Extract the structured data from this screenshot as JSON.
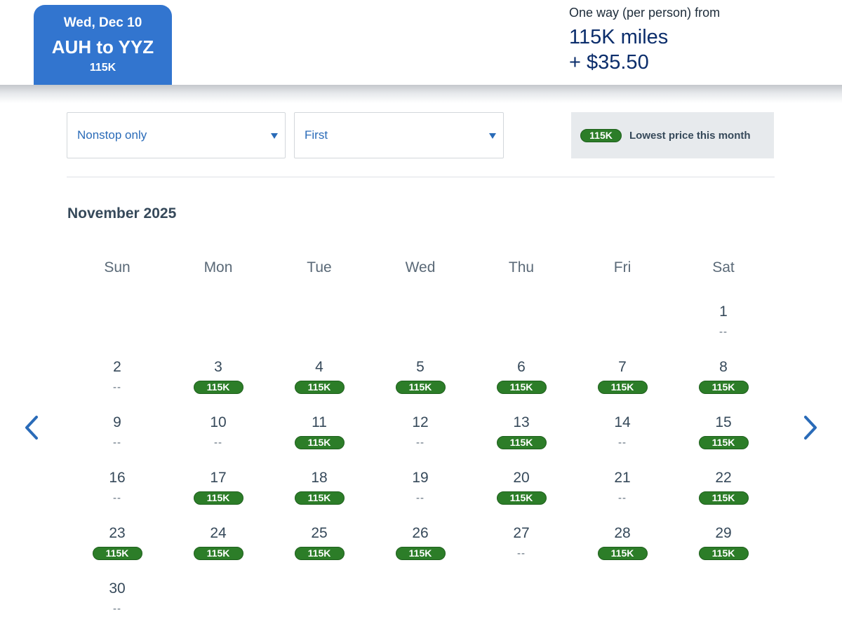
{
  "header": {
    "trip": {
      "date": "Wed, Dec 10",
      "route": "AUH to YYZ",
      "price": "115K"
    },
    "fare": {
      "label": "One way (per person) from",
      "miles": "115K miles",
      "cash": "+ $35.50"
    }
  },
  "filters": {
    "stops": {
      "value": "Nonstop only"
    },
    "cabin": {
      "value": "First"
    }
  },
  "legend": {
    "badge": "115K",
    "text": "Lowest price this month"
  },
  "calendar": {
    "month": "November 2025",
    "weekdays": [
      "Sun",
      "Mon",
      "Tue",
      "Wed",
      "Thu",
      "Fri",
      "Sat"
    ],
    "first_weekday_index": 6,
    "no_fare_text": "--",
    "days": [
      {
        "day": "1",
        "price": null
      },
      {
        "day": "2",
        "price": null
      },
      {
        "day": "3",
        "price": "115K"
      },
      {
        "day": "4",
        "price": "115K"
      },
      {
        "day": "5",
        "price": "115K"
      },
      {
        "day": "6",
        "price": "115K"
      },
      {
        "day": "7",
        "price": "115K"
      },
      {
        "day": "8",
        "price": "115K"
      },
      {
        "day": "9",
        "price": null
      },
      {
        "day": "10",
        "price": null
      },
      {
        "day": "11",
        "price": "115K"
      },
      {
        "day": "12",
        "price": null
      },
      {
        "day": "13",
        "price": "115K"
      },
      {
        "day": "14",
        "price": null
      },
      {
        "day": "15",
        "price": "115K"
      },
      {
        "day": "16",
        "price": null
      },
      {
        "day": "17",
        "price": "115K"
      },
      {
        "day": "18",
        "price": "115K"
      },
      {
        "day": "19",
        "price": null
      },
      {
        "day": "20",
        "price": "115K"
      },
      {
        "day": "21",
        "price": null
      },
      {
        "day": "22",
        "price": "115K"
      },
      {
        "day": "23",
        "price": "115K"
      },
      {
        "day": "24",
        "price": "115K"
      },
      {
        "day": "25",
        "price": "115K"
      },
      {
        "day": "26",
        "price": "115K"
      },
      {
        "day": "27",
        "price": null
      },
      {
        "day": "28",
        "price": "115K"
      },
      {
        "day": "29",
        "price": "115K"
      },
      {
        "day": "30",
        "price": null
      }
    ]
  },
  "navigation": {
    "prev_icon": "chevron-left-icon",
    "next_icon": "chevron-right-icon"
  },
  "colors": {
    "accent_blue": "#3275cf",
    "link_blue": "#2a6bb8",
    "fare_navy": "#0b2d6b",
    "price_green": "#2c7d28",
    "legend_bg": "#e7eaed"
  }
}
